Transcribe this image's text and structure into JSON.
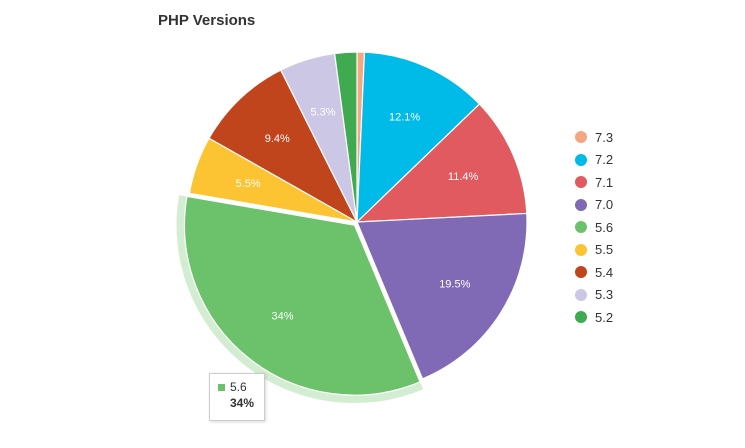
{
  "chart_data": {
    "type": "pie",
    "title": "PHP Versions",
    "categories": [
      "7.3",
      "7.2",
      "7.1",
      "7.0",
      "5.6",
      "5.5",
      "5.4",
      "5.3",
      "5.2"
    ],
    "values": [
      0.7,
      12.1,
      11.4,
      19.5,
      34,
      5.5,
      9.4,
      5.3,
      2.1
    ],
    "data_labels": [
      "",
      "12.1%",
      "11.4%",
      "19.5%",
      "34%",
      "5.5%",
      "9.4%",
      "5.3%",
      ""
    ],
    "colors": [
      "#f4a582",
      "#00bbe8",
      "#e05a5f",
      "#8069b5",
      "#6cc26b",
      "#fcc332",
      "#c0441c",
      "#cbc7e4",
      "#3faa4f"
    ],
    "legend_position": "right",
    "highlighted": "5.6"
  },
  "tooltip": {
    "label": "5.6",
    "value": "34%",
    "color": "#6cc26b"
  }
}
